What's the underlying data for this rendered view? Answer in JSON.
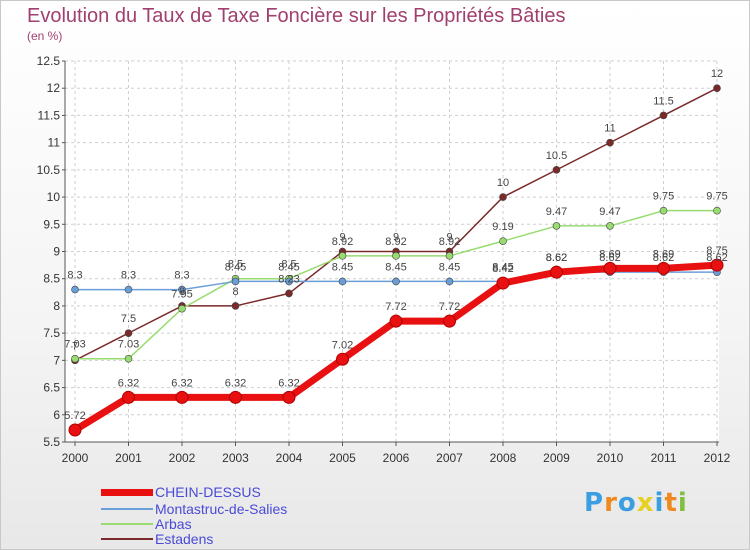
{
  "chart_data": {
    "type": "line",
    "title": "Evolution du Taux de Taxe Foncière sur les Propriétés Bâties",
    "unit_label": "(en %)",
    "xlabel": "",
    "ylabel": "",
    "x": [
      "2000",
      "2001",
      "2002",
      "2003",
      "2004",
      "2005",
      "2006",
      "2007",
      "2008",
      "2009",
      "2010",
      "2011",
      "2012"
    ],
    "ylim": [
      5.5,
      12.5
    ],
    "yticks": [
      "5.5",
      "6",
      "6.5",
      "7",
      "7.5",
      "8",
      "8.5",
      "9",
      "9.5",
      "10",
      "10.5",
      "11",
      "11.5",
      "12",
      "12.5"
    ],
    "grid": true,
    "series": [
      {
        "name": "CHEIN-DESSUS",
        "color": "#e81010",
        "values": [
          5.72,
          6.32,
          6.32,
          6.32,
          6.32,
          7.02,
          7.72,
          7.72,
          8.42,
          8.62,
          8.69,
          8.69,
          8.75
        ],
        "labels": [
          "5.72",
          "6.32",
          "6.32",
          "6.32",
          "6.32",
          "7.02",
          "7.72",
          "7.72",
          "8.42",
          "8.62",
          "8.69",
          "8.69",
          "8.75"
        ]
      },
      {
        "name": "Montastruc-de-Salies",
        "color": "#6a9ed8",
        "values": [
          8.3,
          8.3,
          8.3,
          8.45,
          8.45,
          8.45,
          8.45,
          8.45,
          8.45,
          8.62,
          8.62,
          8.62,
          8.62
        ],
        "labels": [
          "8.3",
          "8.3",
          "8.3",
          "8.45",
          "8.45",
          "8.45",
          "8.45",
          "8.45",
          "8.45",
          "8.62",
          "8.62",
          "8.62",
          "8.62"
        ]
      },
      {
        "name": "Arbas",
        "color": "#98dc70",
        "values": [
          7.03,
          7.03,
          7.95,
          8.5,
          8.5,
          8.92,
          8.92,
          8.92,
          9.19,
          9.47,
          9.47,
          9.75,
          9.75
        ],
        "labels": [
          "7.03",
          "7.03",
          "7.95",
          "8.5",
          "8.5",
          "8.92",
          "8.92",
          "8.92",
          "9.19",
          "9.47",
          "9.47",
          "9.75",
          "9.75"
        ]
      },
      {
        "name": "Estadens",
        "color": "#7a2a2a",
        "values": [
          7.0,
          7.5,
          8.0,
          8.0,
          8.23,
          9.0,
          9.0,
          9.0,
          10.0,
          10.5,
          11.0,
          11.5,
          12.0
        ],
        "labels": [
          "7",
          "7.5",
          "8",
          "8",
          "8.23",
          "9",
          "9",
          "9",
          "10",
          "10.5",
          "11",
          "11.5",
          "12"
        ]
      }
    ]
  },
  "legend": [
    {
      "label": "CHEIN-DESSUS",
      "color": "#e81010"
    },
    {
      "label": "Montastruc-de-Salies",
      "color": "#6a9ed8"
    },
    {
      "label": "Arbas",
      "color": "#98dc70"
    },
    {
      "label": "Estadens",
      "color": "#7a2a2a"
    }
  ],
  "logo": {
    "text": "Proxiti",
    "letter_colors": [
      "#3a9ee0",
      "#f08a20",
      "#3a9ee0",
      "#e8d020",
      "#3a9ee0",
      "#f08a20",
      "#80c040"
    ]
  }
}
